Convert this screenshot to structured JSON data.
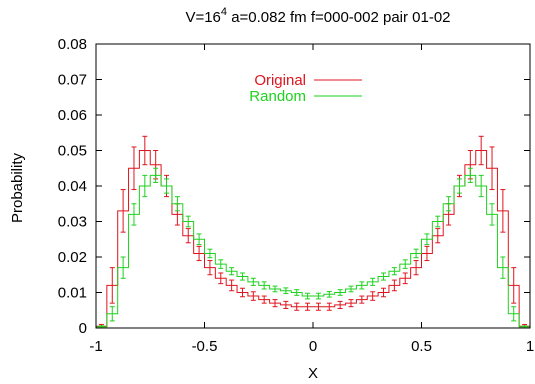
{
  "chart_data": {
    "type": "line",
    "title": "V=16",
    "title_sup": "4",
    "title_rest": " a=0.082 fm f=000-002 pair  01-02",
    "xlabel": "X",
    "ylabel": "Probability",
    "xlim": [
      -1,
      1
    ],
    "ylim": [
      0,
      0.08
    ],
    "xticks": [
      "-1",
      "-0.5",
      "0",
      "0.5",
      "1"
    ],
    "yticks": [
      "0",
      "0.01",
      "0.02",
      "0.03",
      "0.04",
      "0.05",
      "0.06",
      "0.07",
      "0.08"
    ],
    "grid": false,
    "legend_position": "top-center",
    "style": "histogram-steps-with-errorbars",
    "series": [
      {
        "name": "Original",
        "color": "#e0141e",
        "x": [
          -0.975,
          -0.925,
          -0.875,
          -0.825,
          -0.775,
          -0.725,
          -0.675,
          -0.625,
          -0.575,
          -0.525,
          -0.475,
          -0.425,
          -0.375,
          -0.325,
          -0.275,
          -0.225,
          -0.175,
          -0.125,
          -0.075,
          -0.025,
          0.025,
          0.075,
          0.125,
          0.175,
          0.225,
          0.275,
          0.325,
          0.375,
          0.425,
          0.475,
          0.525,
          0.575,
          0.625,
          0.675,
          0.725,
          0.775,
          0.825,
          0.875,
          0.925,
          0.975
        ],
        "values": [
          0.0005,
          0.012,
          0.033,
          0.045,
          0.05,
          0.046,
          0.04,
          0.032,
          0.026,
          0.021,
          0.017,
          0.014,
          0.012,
          0.01,
          0.009,
          0.008,
          0.007,
          0.0065,
          0.006,
          0.006,
          0.006,
          0.006,
          0.0065,
          0.007,
          0.008,
          0.009,
          0.01,
          0.012,
          0.014,
          0.017,
          0.021,
          0.026,
          0.032,
          0.04,
          0.046,
          0.05,
          0.045,
          0.033,
          0.012,
          0.0005
        ],
        "errors": [
          0.0005,
          0.005,
          0.006,
          0.006,
          0.004,
          0.004,
          0.003,
          0.003,
          0.002,
          0.002,
          0.002,
          0.0015,
          0.0015,
          0.0012,
          0.0012,
          0.001,
          0.001,
          0.001,
          0.001,
          0.001,
          0.001,
          0.001,
          0.001,
          0.001,
          0.001,
          0.0012,
          0.0012,
          0.0015,
          0.0015,
          0.002,
          0.002,
          0.002,
          0.003,
          0.003,
          0.004,
          0.004,
          0.006,
          0.006,
          0.005,
          0.0005
        ]
      },
      {
        "name": "Random",
        "color": "#1ed21e",
        "x": [
          -0.975,
          -0.925,
          -0.875,
          -0.825,
          -0.775,
          -0.725,
          -0.675,
          -0.625,
          -0.575,
          -0.525,
          -0.475,
          -0.425,
          -0.375,
          -0.325,
          -0.275,
          -0.225,
          -0.175,
          -0.125,
          -0.075,
          -0.025,
          0.025,
          0.075,
          0.125,
          0.175,
          0.225,
          0.275,
          0.325,
          0.375,
          0.425,
          0.475,
          0.525,
          0.575,
          0.625,
          0.675,
          0.725,
          0.775,
          0.825,
          0.875,
          0.925,
          0.975
        ],
        "values": [
          0.0003,
          0.004,
          0.017,
          0.032,
          0.04,
          0.043,
          0.04,
          0.035,
          0.03,
          0.025,
          0.021,
          0.018,
          0.016,
          0.0145,
          0.013,
          0.012,
          0.011,
          0.0105,
          0.01,
          0.009,
          0.009,
          0.0095,
          0.01,
          0.011,
          0.012,
          0.013,
          0.0145,
          0.016,
          0.018,
          0.021,
          0.025,
          0.03,
          0.035,
          0.04,
          0.043,
          0.04,
          0.032,
          0.017,
          0.004,
          0.0003
        ],
        "errors": [
          0.0003,
          0.002,
          0.003,
          0.003,
          0.003,
          0.002,
          0.002,
          0.002,
          0.0015,
          0.0015,
          0.0012,
          0.0012,
          0.001,
          0.001,
          0.001,
          0.001,
          0.0008,
          0.0008,
          0.0008,
          0.0008,
          0.0008,
          0.0008,
          0.0008,
          0.0008,
          0.001,
          0.001,
          0.001,
          0.001,
          0.0012,
          0.0012,
          0.0015,
          0.0015,
          0.002,
          0.002,
          0.002,
          0.003,
          0.003,
          0.003,
          0.002,
          0.0003
        ]
      }
    ]
  }
}
